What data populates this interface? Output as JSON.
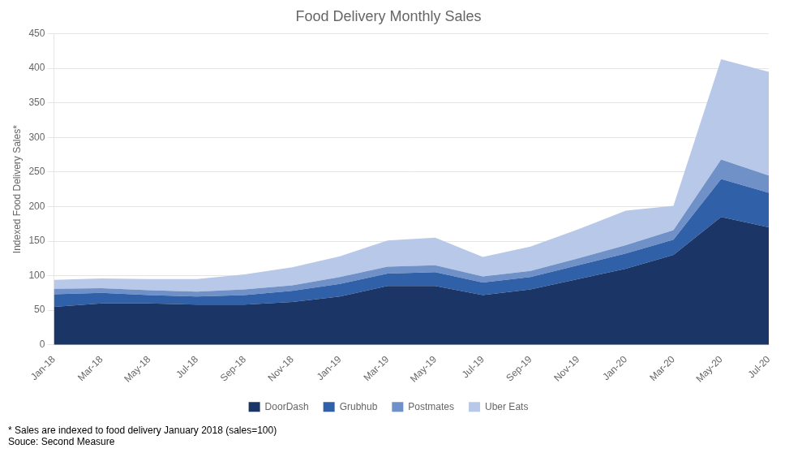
{
  "chart_data": {
    "type": "area",
    "title": "Food Delivery Monthly Sales",
    "y_label": "Indexed Food Delivery Sales*",
    "annotations": [
      "* Sales are indexed to food delivery January 2018 (sales=100)",
      "Souce: Second Measure"
    ],
    "categories": [
      "Jan-18",
      "Mar-18",
      "May-18",
      "Jul-18",
      "Sep-18",
      "Nov-18",
      "Jan-19",
      "Mar-19",
      "May-19",
      "Jul-19",
      "Sep-19",
      "Nov-19",
      "Jan-20",
      "Mar-20",
      "May-20",
      "Jul-20"
    ],
    "series": [
      {
        "name": "DoorDash",
        "color": "#1a3566",
        "values": [
          55,
          60,
          60,
          58,
          58,
          62,
          70,
          85,
          85,
          72,
          80,
          95,
          110,
          130,
          185,
          170
        ]
      },
      {
        "name": "Grubhub",
        "color": "#3060a8",
        "values": [
          18,
          15,
          12,
          12,
          14,
          16,
          18,
          18,
          20,
          18,
          18,
          20,
          22,
          22,
          55,
          50
        ]
      },
      {
        "name": "Postmates",
        "color": "#7090c8",
        "values": [
          8,
          7,
          7,
          7,
          8,
          8,
          10,
          10,
          10,
          9,
          9,
          10,
          12,
          14,
          28,
          25
        ]
      },
      {
        "name": "Uber Eats",
        "color": "#b8c8e8",
        "values": [
          13,
          14,
          16,
          18,
          22,
          26,
          30,
          38,
          40,
          28,
          35,
          42,
          50,
          35,
          145,
          150
        ]
      }
    ],
    "stacked": true,
    "ylim": [
      0,
      450
    ],
    "yticks": [
      0,
      50,
      100,
      150,
      200,
      250,
      300,
      350,
      400,
      450
    ],
    "grid": true,
    "legend": "bottom"
  }
}
